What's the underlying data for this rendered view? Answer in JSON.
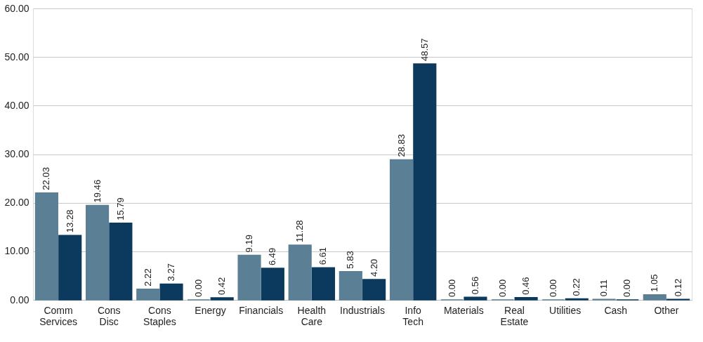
{
  "chart_data": {
    "type": "bar",
    "categories": [
      "Comm Services",
      "Cons Disc",
      "Cons Staples",
      "Energy",
      "Financials",
      "Health Care",
      "Industrials",
      "Info Tech",
      "Materials",
      "Real Estate",
      "Utilities",
      "Cash",
      "Other"
    ],
    "series": [
      {
        "color": "#5b7f95",
        "values": [
          22.03,
          19.46,
          2.22,
          0.0,
          9.19,
          11.28,
          5.83,
          28.83,
          0.0,
          0.0,
          0.0,
          0.11,
          1.05
        ],
        "value_labels": [
          "22.03",
          "19.46",
          "2.22",
          "0.00",
          "9.19",
          "11.28",
          "5.83",
          "28.83",
          "0.00",
          "0.00",
          "0.00",
          "0.11",
          "1.05"
        ]
      },
      {
        "color": "#0b3a5e",
        "values": [
          13.28,
          15.79,
          3.27,
          0.42,
          6.49,
          6.61,
          4.2,
          48.57,
          0.56,
          0.46,
          0.22,
          0.0,
          0.12
        ],
        "value_labels": [
          "13.28",
          "15.79",
          "3.27",
          "0.42",
          "6.49",
          "6.61",
          "4.20",
          "48.57",
          "0.56",
          "0.46",
          "0.22",
          "0.00",
          "0.12"
        ]
      }
    ],
    "ylim": [
      0,
      60
    ],
    "yticks": [
      {
        "value": 0,
        "label": "0.00"
      },
      {
        "value": 10,
        "label": "10.00"
      },
      {
        "value": 20,
        "label": "20.00"
      },
      {
        "value": 30,
        "label": "30.00"
      },
      {
        "value": 40,
        "label": "40.00"
      },
      {
        "value": 50,
        "label": "50.00"
      },
      {
        "value": 60,
        "label": "60.00"
      }
    ],
    "grid": "y",
    "legend": false
  }
}
